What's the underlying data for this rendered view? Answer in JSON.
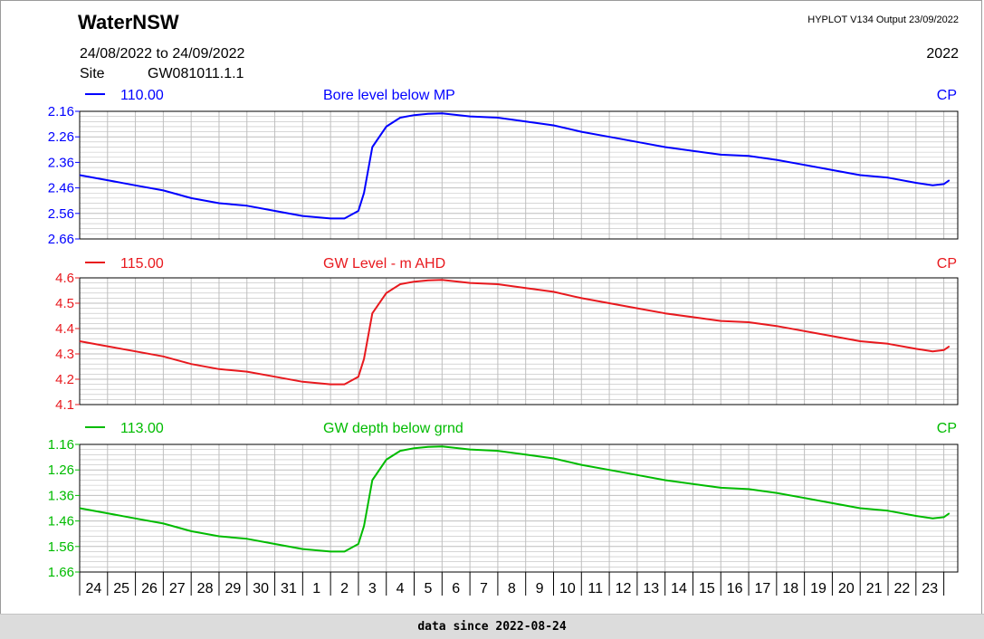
{
  "header": {
    "organization": "WaterNSW",
    "version": "HYPLOT V134  Output 23/09/2022",
    "date_range": "24/08/2022  to  24/09/2022",
    "year": "2022",
    "site_label": "Site",
    "site_id": "GW081011.1.1"
  },
  "footer": {
    "text": "data since 2022-08-24"
  },
  "colors": {
    "blue": "#0000ff",
    "red": "#e8191e",
    "green": "#00bb00",
    "grid": "#bebebe",
    "axis": "#000000"
  },
  "chart_data": [
    {
      "type": "line",
      "panel": "top",
      "code": "110.00",
      "title": "Bore level below MP",
      "cp": "CP",
      "color": "#0000ff",
      "inverted": true,
      "ylim": [
        2.16,
        2.66
      ],
      "yticks": [
        "2.16",
        "2.26",
        "2.36",
        "2.46",
        "2.56",
        "2.66"
      ],
      "x": [
        24,
        25,
        26,
        27,
        28,
        29,
        30,
        31,
        32,
        33,
        33.5,
        34,
        34.2,
        34.5,
        35,
        35.5,
        36,
        36.5,
        37,
        38,
        39,
        40,
        41,
        42,
        43,
        44,
        45,
        46,
        47,
        48,
        49,
        50,
        51,
        52,
        53,
        54,
        54.6,
        55,
        55.2
      ],
      "y": [
        2.41,
        2.43,
        2.45,
        2.47,
        2.5,
        2.52,
        2.53,
        2.55,
        2.57,
        2.58,
        2.58,
        2.55,
        2.48,
        2.3,
        2.22,
        2.185,
        2.175,
        2.17,
        2.168,
        2.18,
        2.185,
        2.2,
        2.215,
        2.24,
        2.26,
        2.28,
        2.3,
        2.315,
        2.33,
        2.335,
        2.35,
        2.37,
        2.39,
        2.41,
        2.42,
        2.44,
        2.45,
        2.445,
        2.43
      ]
    },
    {
      "type": "line",
      "panel": "middle",
      "code": "115.00",
      "title": "GW Level - m AHD",
      "cp": "CP",
      "color": "#e8191e",
      "inverted": false,
      "ylim": [
        4.1,
        4.6
      ],
      "yticks": [
        "4.6",
        "4.5",
        "4.4",
        "4.3",
        "4.2",
        "4.1"
      ],
      "x": [
        24,
        25,
        26,
        27,
        28,
        29,
        30,
        31,
        32,
        33,
        33.5,
        34,
        34.2,
        34.5,
        35,
        35.5,
        36,
        36.5,
        37,
        38,
        39,
        40,
        41,
        42,
        43,
        44,
        45,
        46,
        47,
        48,
        49,
        50,
        51,
        52,
        53,
        54,
        54.6,
        55,
        55.2
      ],
      "y": [
        4.35,
        4.33,
        4.31,
        4.29,
        4.26,
        4.24,
        4.23,
        4.21,
        4.19,
        4.18,
        4.18,
        4.21,
        4.28,
        4.46,
        4.54,
        4.575,
        4.585,
        4.59,
        4.592,
        4.58,
        4.575,
        4.56,
        4.545,
        4.52,
        4.5,
        4.48,
        4.46,
        4.445,
        4.43,
        4.425,
        4.41,
        4.39,
        4.37,
        4.35,
        4.34,
        4.32,
        4.31,
        4.315,
        4.33
      ]
    },
    {
      "type": "line",
      "panel": "bottom",
      "code": "113.00",
      "title": "GW depth below grnd",
      "cp": "CP",
      "color": "#00bb00",
      "inverted": true,
      "ylim": [
        1.16,
        1.66
      ],
      "yticks": [
        "1.16",
        "1.26",
        "1.36",
        "1.46",
        "1.56",
        "1.66"
      ],
      "x": [
        24,
        25,
        26,
        27,
        28,
        29,
        30,
        31,
        32,
        33,
        33.5,
        34,
        34.2,
        34.5,
        35,
        35.5,
        36,
        36.5,
        37,
        38,
        39,
        40,
        41,
        42,
        43,
        44,
        45,
        46,
        47,
        48,
        49,
        50,
        51,
        52,
        53,
        54,
        54.6,
        55,
        55.2
      ],
      "y": [
        1.41,
        1.43,
        1.45,
        1.47,
        1.5,
        1.52,
        1.53,
        1.55,
        1.57,
        1.58,
        1.58,
        1.55,
        1.48,
        1.3,
        1.22,
        1.185,
        1.175,
        1.17,
        1.168,
        1.18,
        1.185,
        1.2,
        1.215,
        1.24,
        1.26,
        1.28,
        1.3,
        1.315,
        1.33,
        1.335,
        1.35,
        1.37,
        1.39,
        1.41,
        1.42,
        1.44,
        1.45,
        1.445,
        1.43
      ]
    }
  ],
  "x_axis": {
    "labels": [
      "24",
      "25",
      "26",
      "27",
      "28",
      "29",
      "30",
      "31",
      "1",
      "2",
      "3",
      "4",
      "5",
      "6",
      "7",
      "8",
      "9",
      "10",
      "11",
      "12",
      "13",
      "14",
      "15",
      "16",
      "17",
      "18",
      "19",
      "20",
      "21",
      "22",
      "23"
    ]
  }
}
